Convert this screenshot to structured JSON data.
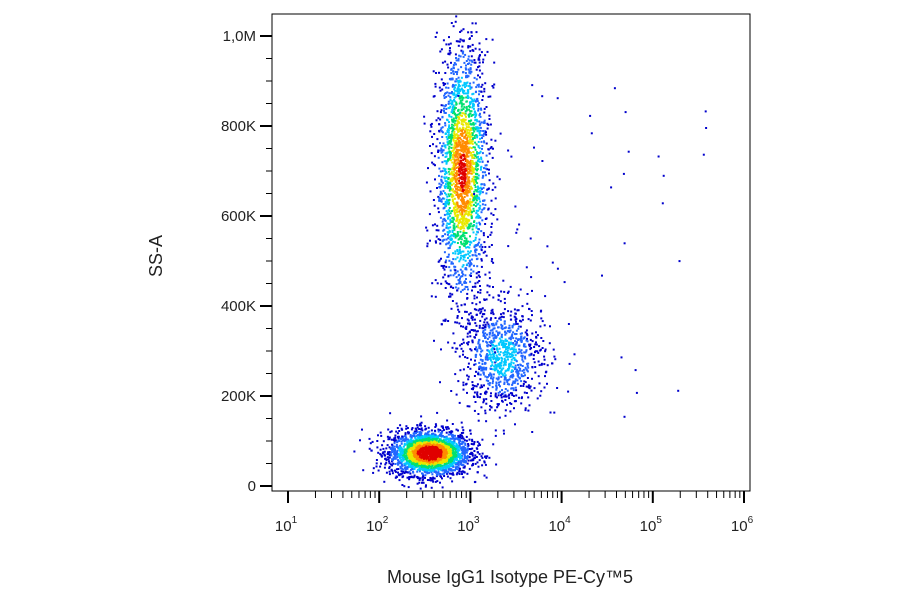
{
  "chart_data": {
    "type": "scatter",
    "subtype": "flow-cytometry density dot plot",
    "xlabel": "Mouse IgG1 Isotype PE-Cy™5",
    "ylabel": "SS-A",
    "x_scale": "log",
    "x_ticks": [
      {
        "value": 10,
        "base": "10",
        "exp": "1"
      },
      {
        "value": 100,
        "base": "10",
        "exp": "2"
      },
      {
        "value": 1000,
        "base": "10",
        "exp": "3"
      },
      {
        "value": 10000,
        "base": "10",
        "exp": "4"
      },
      {
        "value": 100000,
        "base": "10",
        "exp": "5"
      },
      {
        "value": 1000000,
        "base": "10",
        "exp": "6"
      }
    ],
    "y_scale": "linear",
    "ylim": [
      0,
      1050000
    ],
    "y_ticks": [
      {
        "value": 0,
        "label": "0"
      },
      {
        "value": 200000,
        "label": "200K"
      },
      {
        "value": 400000,
        "label": "400K"
      },
      {
        "value": 600000,
        "label": "600K"
      },
      {
        "value": 800000,
        "label": "800K"
      },
      {
        "value": 1000000,
        "label": "1,0M"
      }
    ],
    "grid": false,
    "legend": "none",
    "color_scale": [
      "#0000cc",
      "#2266ff",
      "#00c8ff",
      "#00e070",
      "#e8e800",
      "#ff8c00",
      "#e00000"
    ],
    "populations": [
      {
        "x_center": 350,
        "x_sd_log10": 0.22,
        "y_center": 75000,
        "y_sd": 25000,
        "relative_density": 1.0
      },
      {
        "x_center": 800,
        "x_sd_log10": 0.14,
        "y_center": 700000,
        "y_sd": 140000,
        "relative_density": 0.85
      },
      {
        "x_center": 2200,
        "x_sd_log10": 0.22,
        "y_center": 290000,
        "y_sd": 60000,
        "relative_density": 0.35
      }
    ]
  }
}
